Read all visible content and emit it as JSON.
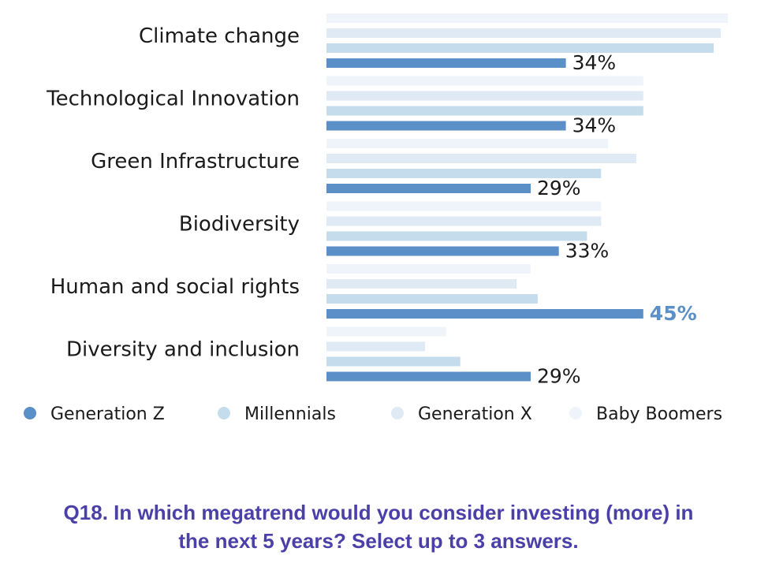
{
  "chart_data": {
    "type": "bar",
    "orientation": "horizontal",
    "categories": [
      "Climate change",
      "Technological Innovation",
      "Green Infrastructure",
      "Biodiversity",
      "Human and social rights",
      "Diversity and inclusion"
    ],
    "series": [
      {
        "name": "Generation Z",
        "color": "#5b8fc7",
        "values": [
          34,
          34,
          29,
          33,
          45,
          29
        ]
      },
      {
        "name": "Millennials",
        "color": "#c5dcec",
        "values": [
          55,
          45,
          39,
          37,
          30,
          19
        ]
      },
      {
        "name": "Generation X",
        "color": "#dfeaf4",
        "values": [
          56,
          45,
          44,
          39,
          27,
          14
        ]
      },
      {
        "name": "Baby Boomers",
        "color": "#eef4fa",
        "values": [
          57,
          45,
          40,
          39,
          29,
          17
        ]
      }
    ],
    "value_labels": [
      "34%",
      "34%",
      "29%",
      "33%",
      "45%",
      "29%"
    ],
    "highlight_index": 4,
    "highlight_color": "#5b8fc7",
    "xlim": [
      0,
      57
    ],
    "grid": false,
    "legend_position": "bottom"
  },
  "caption": {
    "line1": "Q18. In which megatrend would you consider investing (more) in",
    "line2": "the next 5 years? Select up to 3 answers."
  }
}
